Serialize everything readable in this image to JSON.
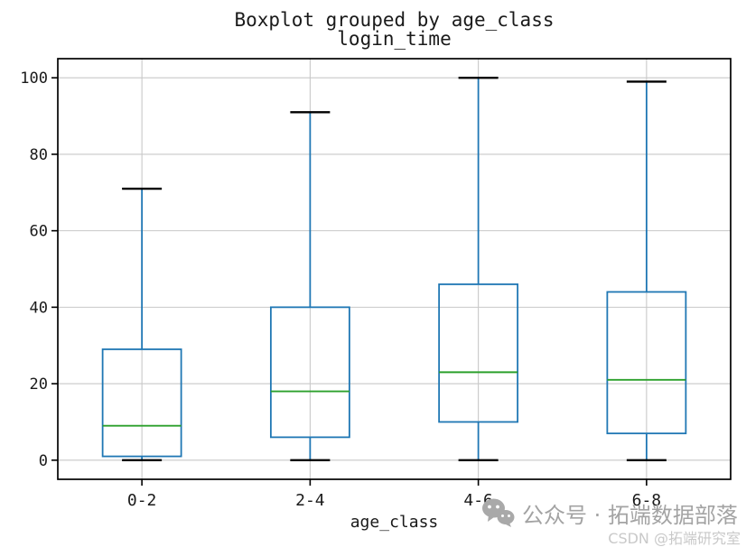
{
  "chart_data": {
    "type": "boxplot",
    "title": "Boxplot grouped by age_class",
    "subtitle": "login_time",
    "xlabel": "age_class",
    "ylabel": "",
    "categories": [
      "0-2",
      "2-4",
      "4-6",
      "6-8"
    ],
    "series": [
      {
        "category": "0-2",
        "whisker_low": 0,
        "q1": 1,
        "median": 9,
        "q3": 29,
        "whisker_high": 71
      },
      {
        "category": "2-4",
        "whisker_low": 0,
        "q1": 6,
        "median": 18,
        "q3": 40,
        "whisker_high": 91
      },
      {
        "category": "4-6",
        "whisker_low": 0,
        "q1": 10,
        "median": 23,
        "q3": 46,
        "whisker_high": 100
      },
      {
        "category": "6-8",
        "whisker_low": 0,
        "q1": 7,
        "median": 21,
        "q3": 44,
        "whisker_high": 99
      }
    ],
    "ylim": [
      -5,
      105
    ],
    "yticks": [
      0,
      20,
      40,
      60,
      80,
      100
    ],
    "grid": true,
    "legend": null,
    "colors": {
      "box": "#1f77b4",
      "whisker": "#1f77b4",
      "median": "#2ca02c",
      "cap": "#000000",
      "grid": "#c8c8c8",
      "spine": "#000000",
      "text": "#1a1a1a"
    }
  },
  "watermark": {
    "icon": "wechat-icon",
    "line1": "公众号 · 拓端数据部落",
    "line2": "CSDN @拓端研究室"
  }
}
